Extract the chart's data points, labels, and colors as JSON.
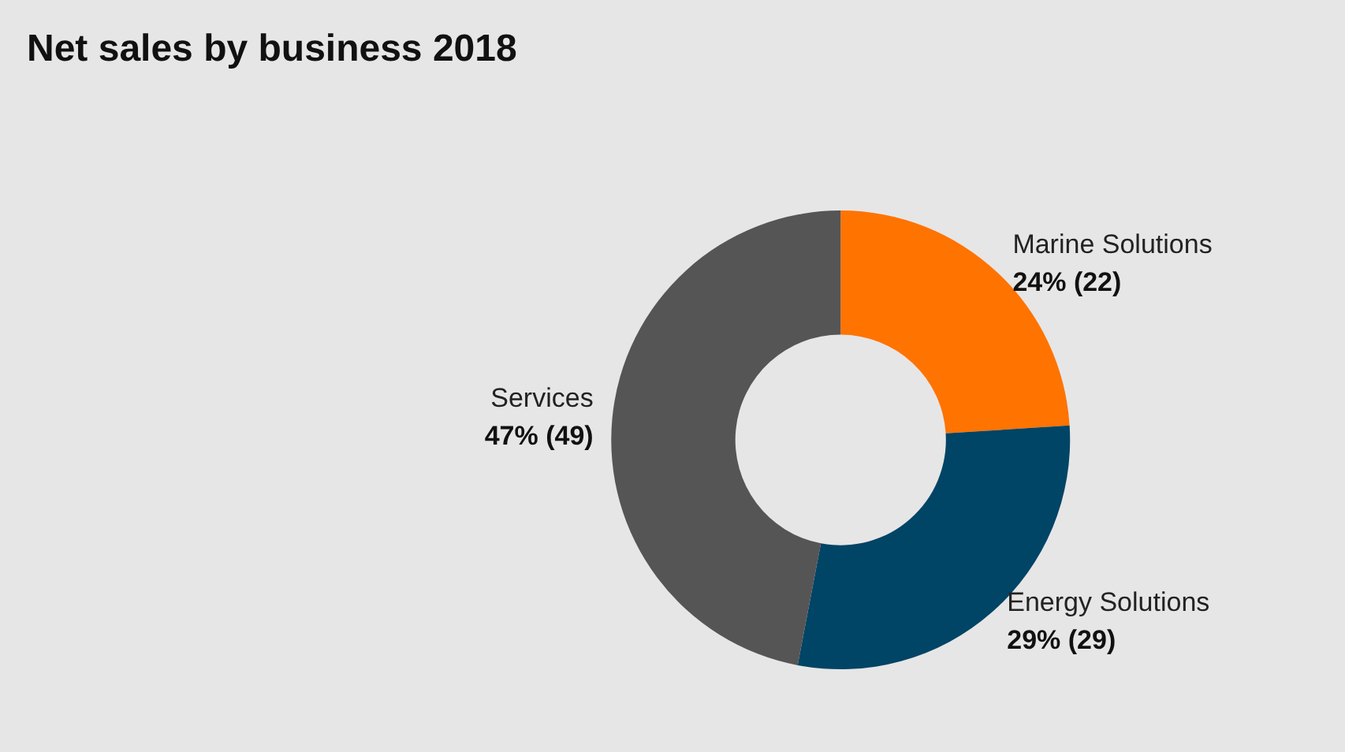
{
  "chart_data": {
    "type": "donut",
    "title": "Net sales by business 2018",
    "categories": [
      "Marine Solutions",
      "Energy Solutions",
      "Services"
    ],
    "values": [
      24,
      29,
      47
    ],
    "colors": [
      "#ff7300",
      "#004466",
      "#555555"
    ],
    "value_labels": [
      "24% (22)",
      "29% (29)",
      "47% (49)"
    ],
    "legend": false
  }
}
